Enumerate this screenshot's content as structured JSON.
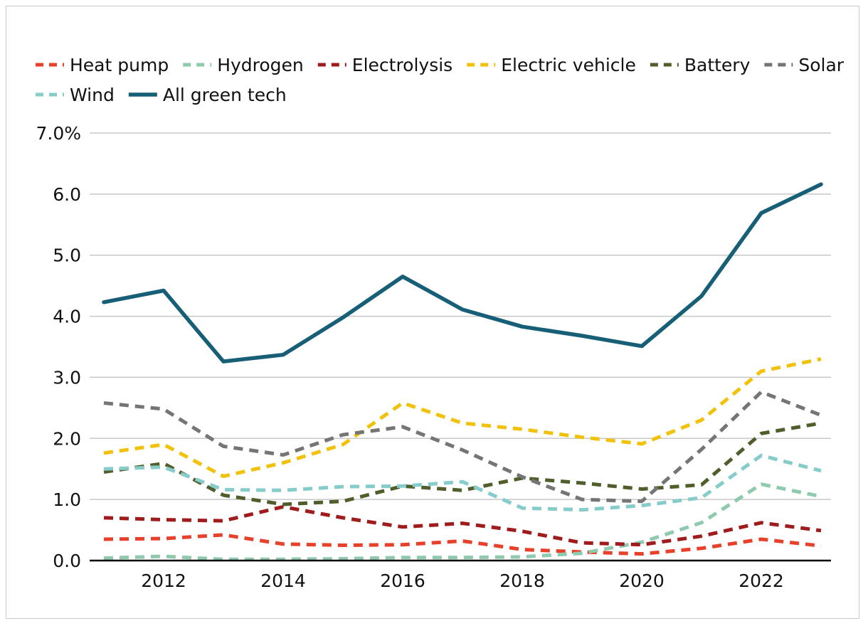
{
  "chart_data": {
    "type": "line",
    "title": "",
    "xlabel": "",
    "ylabel": "",
    "x": [
      2011,
      2012,
      2013,
      2014,
      2015,
      2016,
      2017,
      2018,
      2019,
      2020,
      2021,
      2022,
      2023
    ],
    "x_tick_labels": [
      "2012",
      "2014",
      "2016",
      "2018",
      "2020",
      "2022"
    ],
    "x_tick_values": [
      2012,
      2014,
      2016,
      2018,
      2020,
      2022
    ],
    "y_tick_labels": [
      "0.0",
      "1.0",
      "2.0",
      "3.0",
      "4.0",
      "5.0",
      "6.0",
      "7.0%"
    ],
    "y_tick_values": [
      0,
      1,
      2,
      3,
      4,
      5,
      6,
      7
    ],
    "ylim": [
      0,
      7
    ],
    "xlim": [
      2011,
      2023
    ],
    "grid": true,
    "legend_position": "top",
    "series": [
      {
        "name": "Heat pump",
        "color": "#e8412b",
        "dashed": true,
        "values": [
          0.35,
          0.36,
          0.42,
          0.27,
          0.25,
          0.26,
          0.32,
          0.18,
          0.14,
          0.11,
          0.2,
          0.35,
          0.24
        ]
      },
      {
        "name": "Hydrogen",
        "color": "#8fcaae",
        "dashed": true,
        "values": [
          0.04,
          0.07,
          0.02,
          0.02,
          0.03,
          0.05,
          0.05,
          0.06,
          0.12,
          0.3,
          0.62,
          1.25,
          1.05
        ]
      },
      {
        "name": "Electrolysis",
        "color": "#a01c1c",
        "dashed": true,
        "values": [
          0.7,
          0.67,
          0.65,
          0.88,
          0.7,
          0.55,
          0.61,
          0.48,
          0.29,
          0.26,
          0.4,
          0.62,
          0.49
        ]
      },
      {
        "name": "Electric vehicle",
        "color": "#f2c10c",
        "dashed": true,
        "values": [
          1.76,
          1.9,
          1.38,
          1.6,
          1.9,
          2.58,
          2.25,
          2.15,
          2.02,
          1.91,
          2.3,
          3.1,
          3.3
        ]
      },
      {
        "name": "Battery",
        "color": "#4f5e2b",
        "dashed": true,
        "values": [
          1.45,
          1.59,
          1.07,
          0.92,
          0.97,
          1.22,
          1.15,
          1.35,
          1.27,
          1.17,
          1.24,
          2.08,
          2.25
        ]
      },
      {
        "name": "Solar",
        "color": "#757575",
        "dashed": true,
        "values": [
          2.58,
          2.48,
          1.87,
          1.73,
          2.06,
          2.19,
          1.81,
          1.37,
          1.0,
          0.97,
          1.82,
          2.76,
          2.38
        ]
      },
      {
        "name": "Wind",
        "color": "#86cccb",
        "dashed": true,
        "values": [
          1.5,
          1.53,
          1.16,
          1.15,
          1.21,
          1.22,
          1.29,
          0.86,
          0.83,
          0.9,
          1.03,
          1.72,
          1.47
        ]
      },
      {
        "name": "All green tech",
        "color": "#175f76",
        "dashed": false,
        "values": [
          4.23,
          4.42,
          3.26,
          3.37,
          3.98,
          4.65,
          4.11,
          3.83,
          3.68,
          3.51,
          4.33,
          5.69,
          6.16
        ]
      }
    ]
  }
}
